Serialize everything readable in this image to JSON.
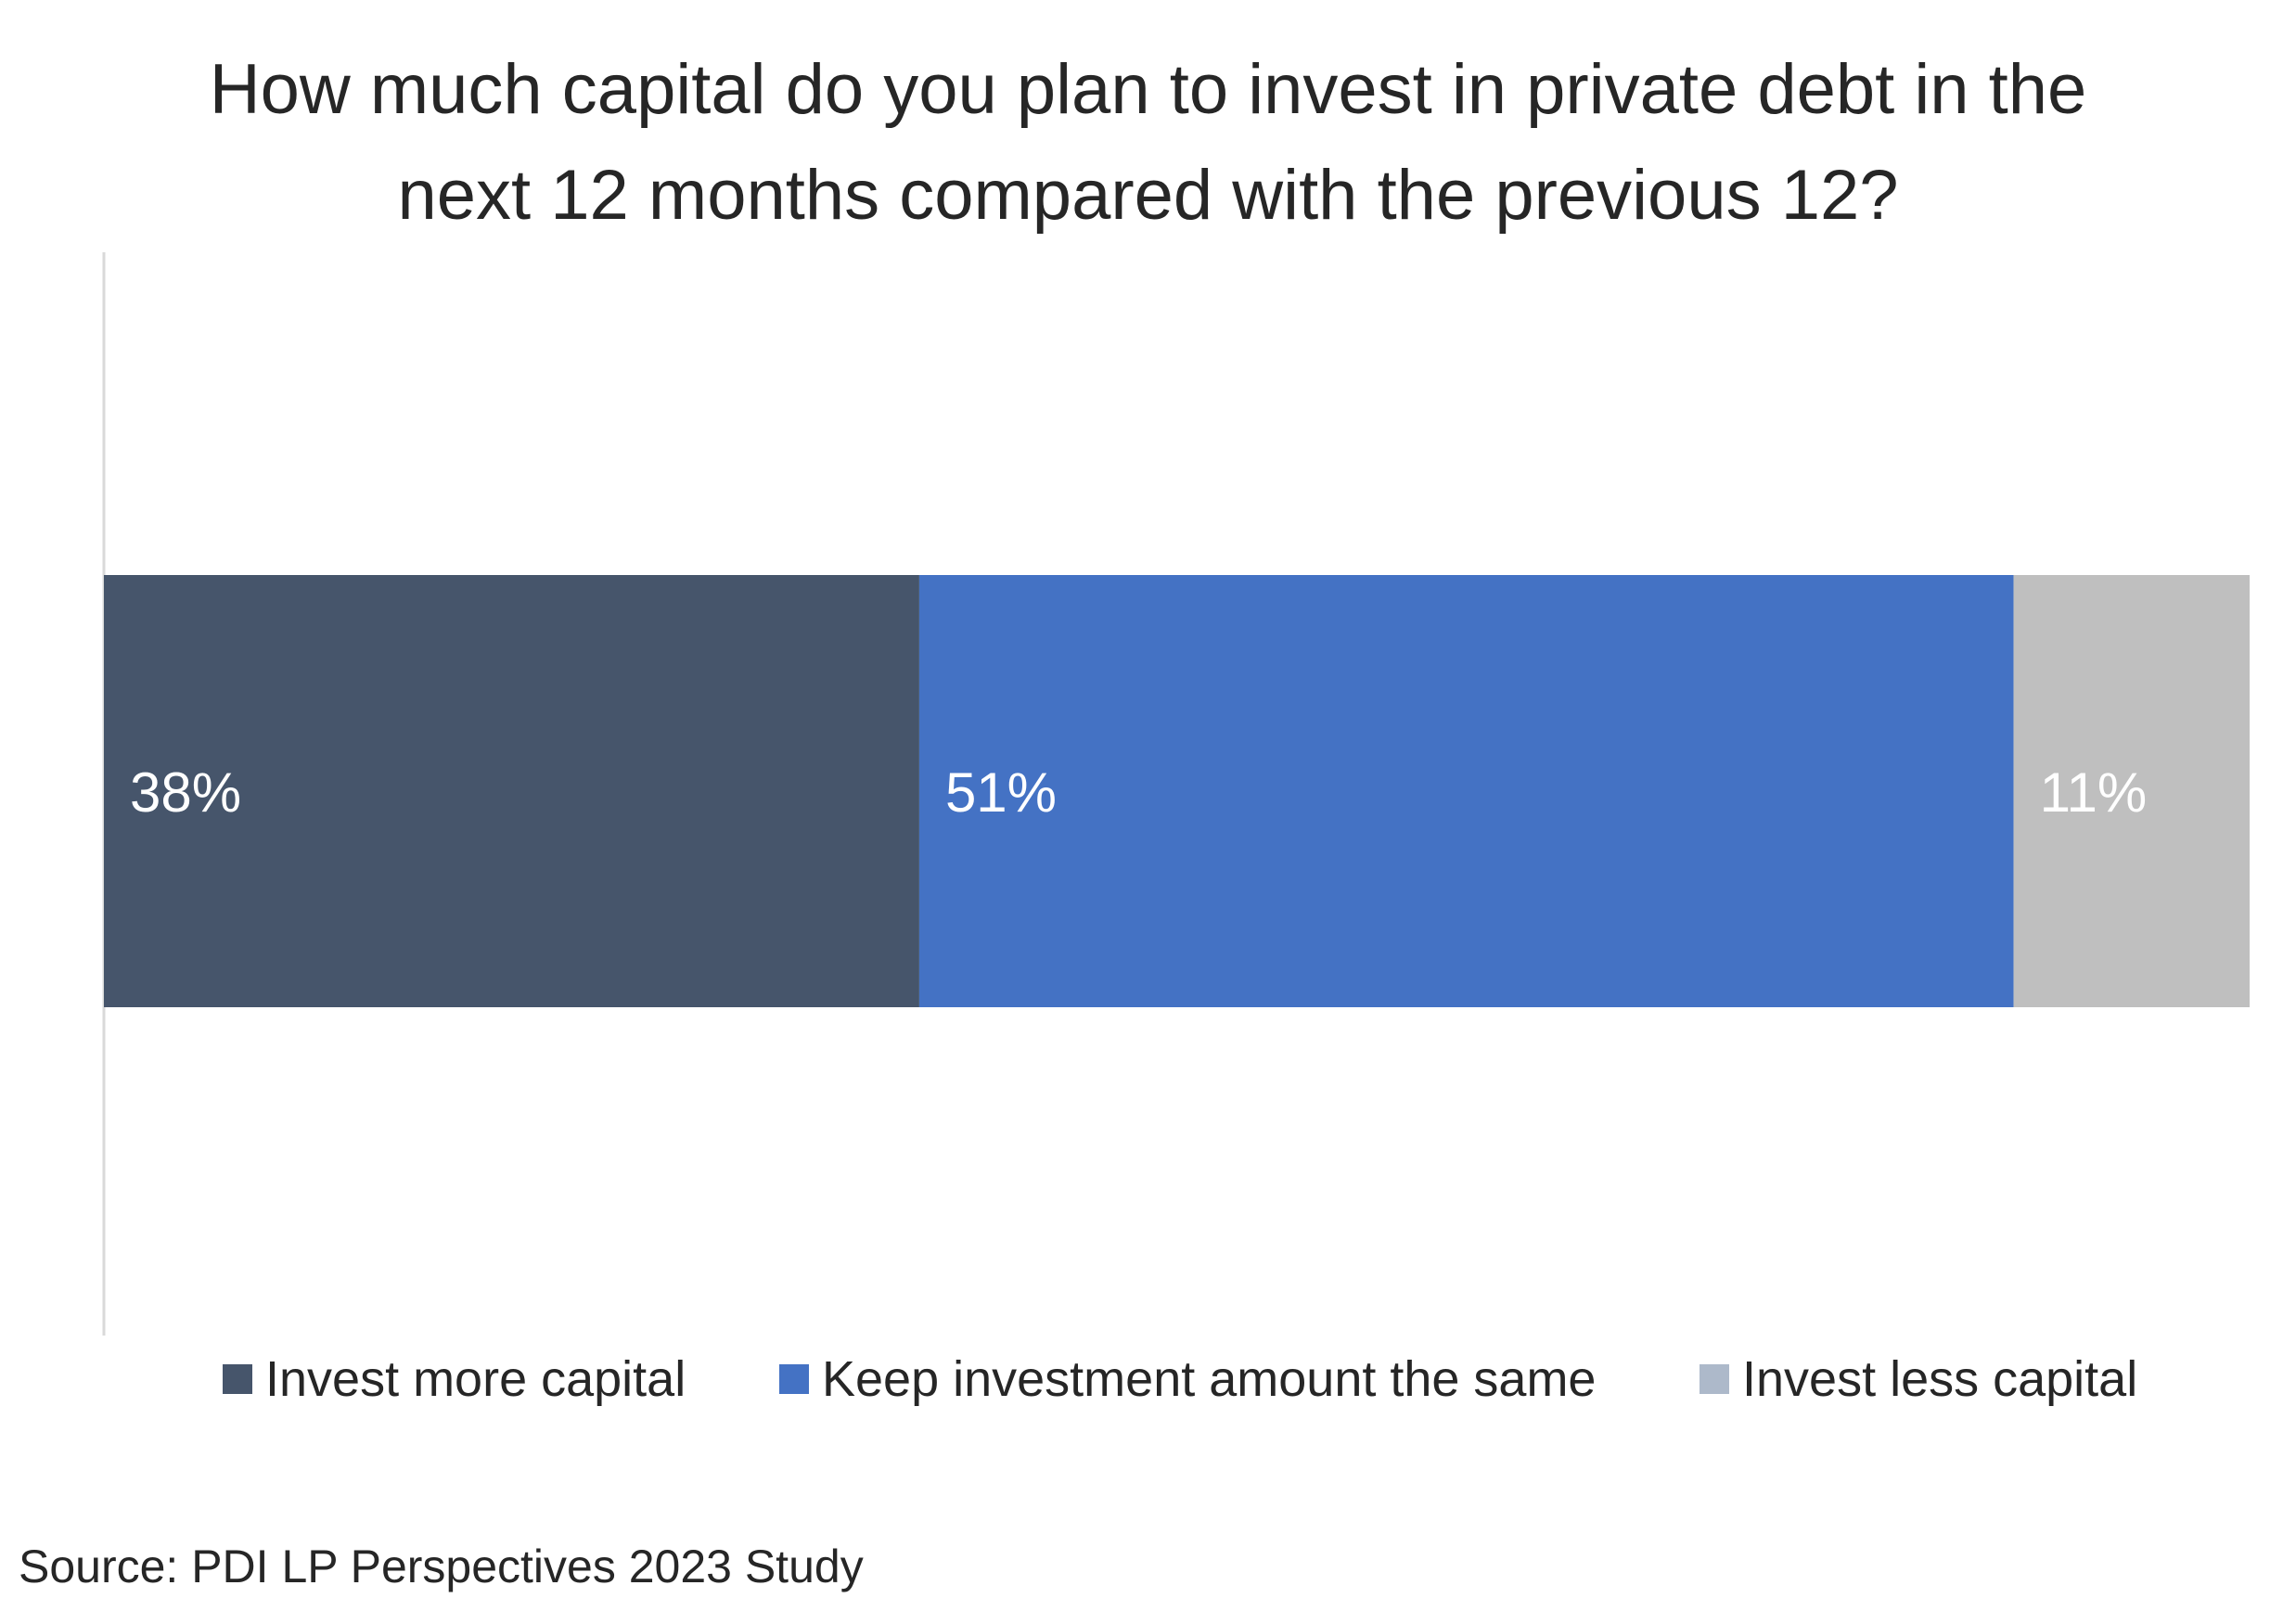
{
  "chart_data": {
    "type": "bar",
    "orientation": "horizontal",
    "stacked": true,
    "title": "How much capital do you plan to invest in private debt in the next 12 months compared with the previous 12?",
    "title_lines": [
      "How much capital do you plan to invest in private debt in the",
      "next 12 months compared with the previous 12?"
    ],
    "categories": [
      ""
    ],
    "series": [
      {
        "name": "Invest more capital",
        "values": [
          38
        ],
        "label": "38%",
        "color": "#46556b"
      },
      {
        "name": "Keep investment amount the same",
        "values": [
          51
        ],
        "label": "51%",
        "color": "#4472c4"
      },
      {
        "name": "Invest less capital",
        "values": [
          11
        ],
        "label": "11%",
        "color": "#bfbfbf"
      }
    ],
    "legend_swatch_colors": [
      "#46556b",
      "#4472c4",
      "#adb9ca"
    ],
    "xlim": [
      0,
      100
    ],
    "legend_position": "bottom",
    "grid": false,
    "source": "Source: PDI LP Perspectives 2023 Study"
  }
}
